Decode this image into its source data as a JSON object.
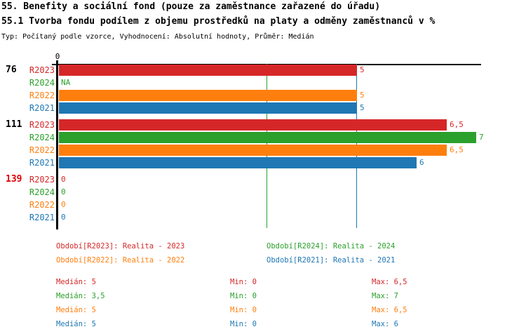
{
  "title": "55. Benefity a sociální fond (pouze za zaměstnance zařazené do úřadu)",
  "subtitle": "55.1 Tvorba fondu podílem z objemu prostředků na platy a odměny zaměstnanců v %",
  "meta": "Typ: Počítaný podle vzorce, Vyhodnocení: Absolutní hodnoty, Průměr: Medián",
  "colors": {
    "R2023": "#d62728",
    "R2024": "#2ca02c",
    "R2022": "#ff7f0e",
    "R2021": "#1f77b4",
    "group_label_default": "#000000",
    "group_label_highlight": "#dd0000",
    "axis": "#000000"
  },
  "chart_data": {
    "type": "bar",
    "orientation": "horizontal",
    "unit": "%",
    "x_axis": {
      "zero_tick": "0",
      "max": 7.1,
      "grid": false
    },
    "series_order": [
      "R2023",
      "R2024",
      "R2022",
      "R2021"
    ],
    "groups": [
      {
        "label": "76",
        "highlight": false,
        "rows": [
          {
            "series": "R2023",
            "value": 5,
            "display": "5"
          },
          {
            "series": "R2024",
            "value": null,
            "display": "NA"
          },
          {
            "series": "R2022",
            "value": 5,
            "display": "5"
          },
          {
            "series": "R2021",
            "value": 5,
            "display": "5"
          }
        ]
      },
      {
        "label": "111",
        "highlight": false,
        "rows": [
          {
            "series": "R2023",
            "value": 6.5,
            "display": "6,5"
          },
          {
            "series": "R2024",
            "value": 7,
            "display": "7"
          },
          {
            "series": "R2022",
            "value": 6.5,
            "display": "6,5"
          },
          {
            "series": "R2021",
            "value": 6,
            "display": "6"
          }
        ]
      },
      {
        "label": "139",
        "highlight": true,
        "rows": [
          {
            "series": "R2023",
            "value": 0,
            "display": "0"
          },
          {
            "series": "R2024",
            "value": 0,
            "display": "0"
          },
          {
            "series": "R2022",
            "value": 0,
            "display": "0"
          },
          {
            "series": "R2021",
            "value": 0,
            "display": "0"
          }
        ]
      }
    ],
    "reference_lines": [
      {
        "series": "R2024",
        "value": 3.5
      },
      {
        "series": "R2021",
        "value": 5
      }
    ]
  },
  "legend": [
    {
      "series": "R2023",
      "text": "Období[R2023]: Realita - 2023",
      "col": 0,
      "row": 0
    },
    {
      "series": "R2024",
      "text": "Období[R2024]: Realita - 2024",
      "col": 1,
      "row": 0
    },
    {
      "series": "R2022",
      "text": "Období[R2022]: Realita - 2022",
      "col": 0,
      "row": 1
    },
    {
      "series": "R2021",
      "text": "Období[R2021]: Realita - 2021",
      "col": 1,
      "row": 1
    }
  ],
  "stats": [
    {
      "series": "R2023",
      "median": "Medián: 5",
      "min": "Min: 0",
      "max": "Max: 6,5"
    },
    {
      "series": "R2024",
      "median": "Medián: 3,5",
      "min": "Min: 0",
      "max": "Max: 7"
    },
    {
      "series": "R2022",
      "median": "Medián: 5",
      "min": "Min: 0",
      "max": "Max: 6,5"
    },
    {
      "series": "R2021",
      "median": "Medián: 5",
      "min": "Min: 0",
      "max": "Max: 6"
    }
  ]
}
